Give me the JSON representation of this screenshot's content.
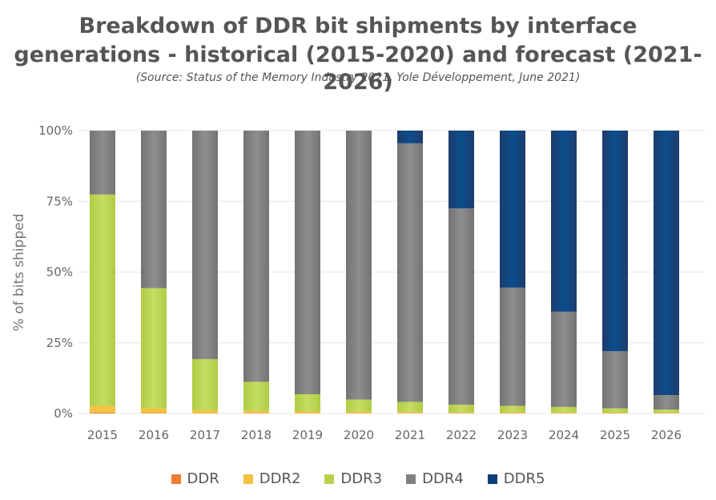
{
  "chart_data": {
    "type": "bar",
    "stacked": true,
    "title_line1": "Breakdown of DDR bit shipments by interface",
    "title_line2": "generations - historical (2015-2020) and forecast (2021-2026)",
    "subtitle": "(Source: Status of the Memory Industry 2021, Yole Développement, June 2021)",
    "ylabel": "% of bits shipped",
    "xlabel": "",
    "ylim": [
      0,
      100
    ],
    "yticks": [
      "0%",
      "25%",
      "50%",
      "75%",
      "100%"
    ],
    "grid": true,
    "legend_position": "bottom",
    "categories": [
      "2015",
      "2016",
      "2017",
      "2018",
      "2019",
      "2020",
      "2021",
      "2022",
      "2023",
      "2024",
      "2025",
      "2026"
    ],
    "series": [
      {
        "name": "DDR",
        "color": "#ED7D31",
        "values": [
          0.3,
          0.2,
          0.1,
          0.1,
          0.1,
          0.1,
          0.1,
          0.1,
          0.1,
          0.1,
          0.1,
          0.1
        ]
      },
      {
        "name": "DDR2",
        "color": "#F4C242",
        "values": [
          2.4,
          1.6,
          1.0,
          0.8,
          0.6,
          0.5,
          0.4,
          0.3,
          0.3,
          0.3,
          0.2,
          0.2
        ]
      },
      {
        "name": "DDR3",
        "color": "#B9D24E",
        "values": [
          74.7,
          42.5,
          18.1,
          10.3,
          6.1,
          4.3,
          3.6,
          2.7,
          2.3,
          1.9,
          1.5,
          1.1
        ]
      },
      {
        "name": "DDR4",
        "color": "#808080",
        "values": [
          22.6,
          55.7,
          80.8,
          88.8,
          93.2,
          95.1,
          91.4,
          69.4,
          41.8,
          33.7,
          20.2,
          5.1
        ]
      },
      {
        "name": "DDR5",
        "color": "#0B3F7A",
        "values": [
          0,
          0,
          0,
          0,
          0,
          0,
          4.5,
          27.5,
          55.5,
          64.0,
          78.0,
          93.5
        ]
      }
    ]
  }
}
